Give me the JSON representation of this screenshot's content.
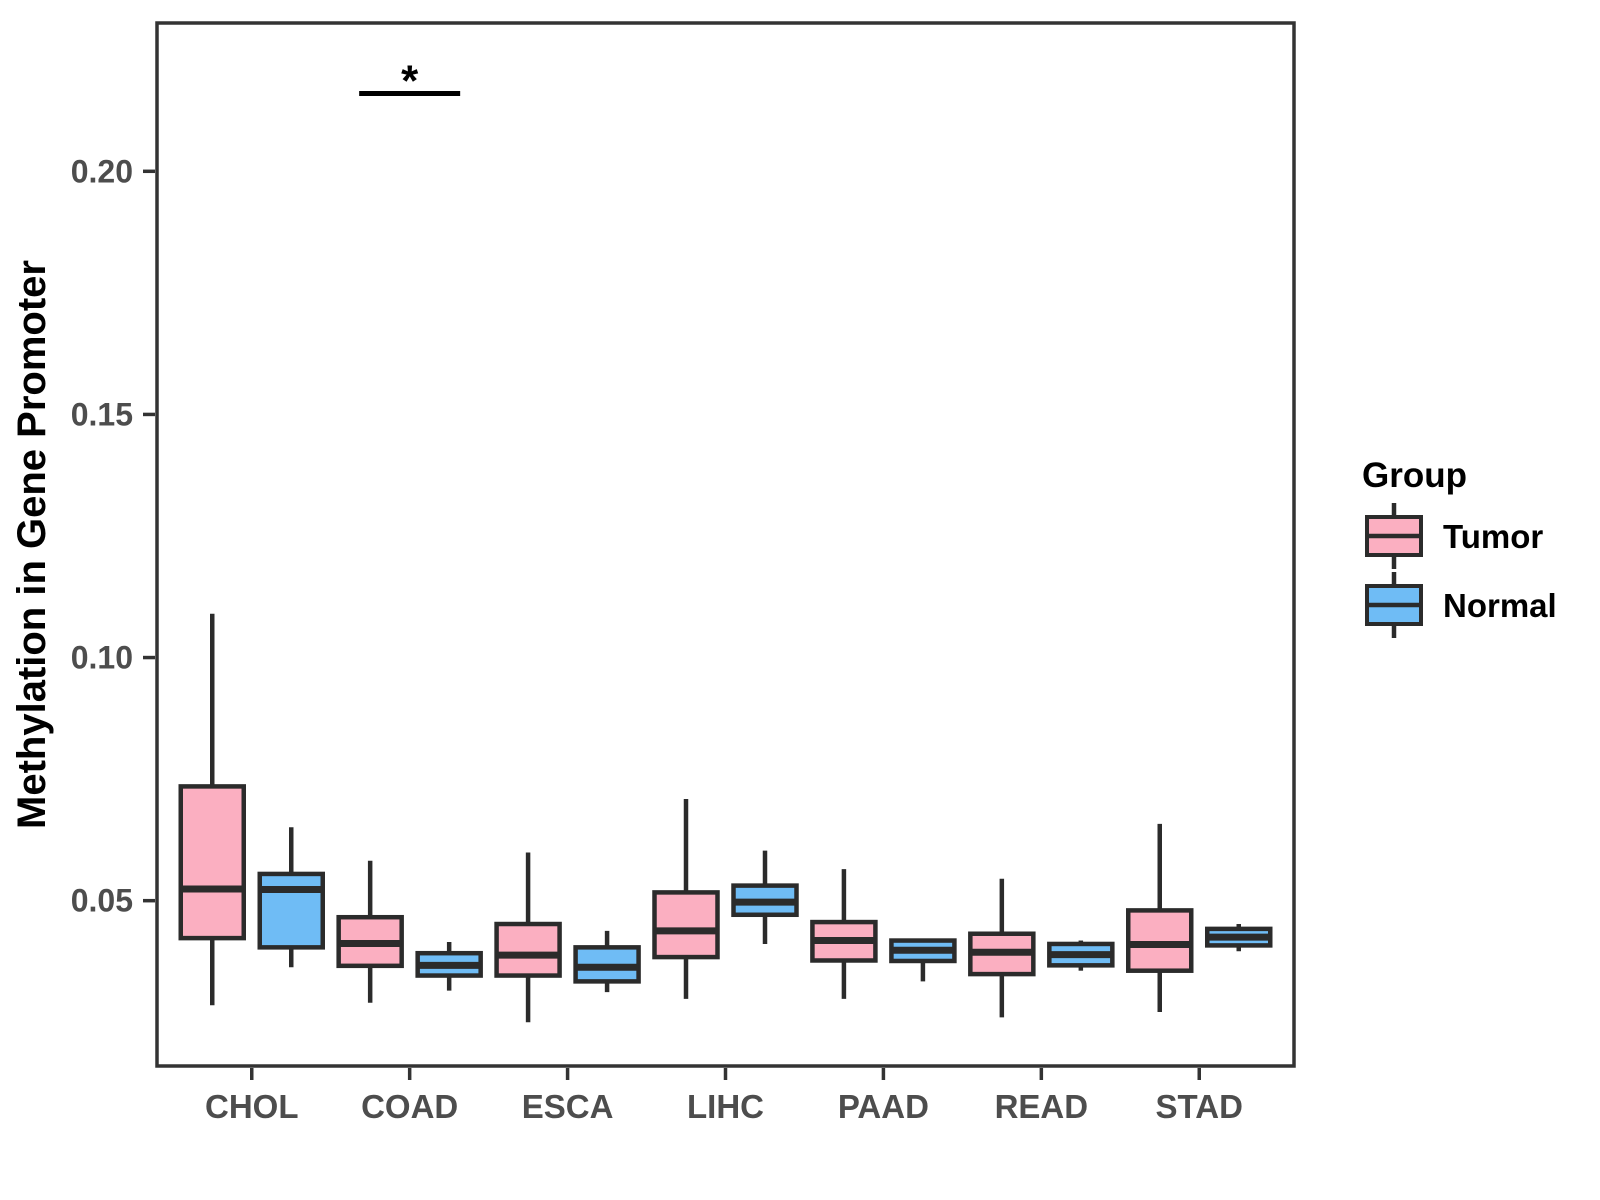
{
  "chart_data": {
    "type": "boxplot",
    "title": "",
    "xlabel": "",
    "ylabel": "Methylation in Gene Promoter",
    "categories": [
      "CHOL",
      "COAD",
      "ESCA",
      "LIHC",
      "PAAD",
      "READ",
      "STAD"
    ],
    "y_axis": {
      "ticks": [
        "0.05",
        "0.10",
        "0.15",
        "0.20"
      ],
      "tick_values": [
        0.05,
        0.1,
        0.15,
        0.2
      ],
      "range": [
        0.016,
        0.2305
      ]
    },
    "grid": "off",
    "legend": {
      "title": "Group",
      "position": "right",
      "entries": [
        {
          "label": "Tumor",
          "color": "#FBAFC1"
        },
        {
          "label": "Normal",
          "color": "#6FBCF5"
        }
      ]
    },
    "series": [
      {
        "name": "Tumor",
        "color": "#FBAFC1",
        "boxes": [
          {
            "category": "CHOL",
            "min": 0.0285,
            "q1": 0.0423,
            "median": 0.0524,
            "q3": 0.0735,
            "max": 0.109
          },
          {
            "category": "COAD",
            "min": 0.029,
            "q1": 0.0366,
            "median": 0.0412,
            "q3": 0.0466,
            "max": 0.0582
          },
          {
            "category": "ESCA",
            "min": 0.025,
            "q1": 0.0346,
            "median": 0.0388,
            "q3": 0.0452,
            "max": 0.0599
          },
          {
            "category": "LIHC",
            "min": 0.0298,
            "q1": 0.0384,
            "median": 0.0438,
            "q3": 0.0517,
            "max": 0.0709
          },
          {
            "category": "PAAD",
            "min": 0.0298,
            "q1": 0.0377,
            "median": 0.0418,
            "q3": 0.0456,
            "max": 0.0565
          },
          {
            "category": "READ",
            "min": 0.026,
            "q1": 0.0349,
            "median": 0.0394,
            "q3": 0.0432,
            "max": 0.0545
          },
          {
            "category": "STAD",
            "min": 0.0271,
            "q1": 0.0356,
            "median": 0.041,
            "q3": 0.048,
            "max": 0.0658
          }
        ]
      },
      {
        "name": "Normal",
        "color": "#6FBCF5",
        "boxes": [
          {
            "category": "CHOL",
            "min": 0.0363,
            "q1": 0.0404,
            "median": 0.0523,
            "q3": 0.0555,
            "max": 0.0651
          },
          {
            "category": "COAD",
            "min": 0.0315,
            "q1": 0.0346,
            "median": 0.0367,
            "q3": 0.0392,
            "max": 0.0415
          },
          {
            "category": "ESCA",
            "min": 0.0312,
            "q1": 0.0334,
            "median": 0.0363,
            "q3": 0.0404,
            "max": 0.0438
          },
          {
            "category": "LIHC",
            "min": 0.0411,
            "q1": 0.0471,
            "median": 0.0497,
            "q3": 0.0531,
            "max": 0.0603
          },
          {
            "category": "PAAD",
            "min": 0.0334,
            "q1": 0.0376,
            "median": 0.0398,
            "q3": 0.0418,
            "max": 0.042
          },
          {
            "category": "READ",
            "min": 0.0356,
            "q1": 0.0367,
            "median": 0.0389,
            "q3": 0.0411,
            "max": 0.0418
          },
          {
            "category": "STAD",
            "min": 0.0396,
            "q1": 0.0408,
            "median": 0.0425,
            "q3": 0.0442,
            "max": 0.0452
          }
        ]
      }
    ],
    "annotations": [
      {
        "type": "significance",
        "label": "*",
        "category": "COAD",
        "bar_y": 0.216
      }
    ]
  },
  "style": {
    "background": "#FFFFFF",
    "panel_border_color": "#333333",
    "box_outline_color": "#2B2B2B",
    "tick_color": "#333333",
    "tick_label_color": "#4D4D4D",
    "axis_title_color": "#000000",
    "legend_text_color": "#000000",
    "annotation_color": "#000000",
    "tumor_fill": "#FBAFC1",
    "normal_fill": "#6FBCF5"
  }
}
